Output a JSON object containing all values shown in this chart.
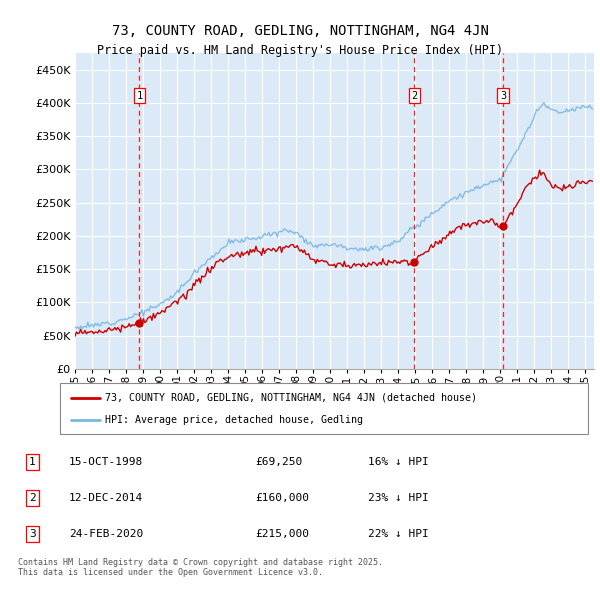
{
  "title": "73, COUNTY ROAD, GEDLING, NOTTINGHAM, NG4 4JN",
  "subtitle": "Price paid vs. HM Land Registry's House Price Index (HPI)",
  "background_color": "#dce9f7",
  "plot_bg_color": "#dce9f7",
  "hpi_color": "#7ab8e0",
  "price_color": "#cc0000",
  "ylim": [
    0,
    475000
  ],
  "yticks": [
    0,
    50000,
    100000,
    150000,
    200000,
    250000,
    300000,
    350000,
    400000,
    450000
  ],
  "xlim_start": 1995.0,
  "xlim_end": 2025.5,
  "transactions": [
    {
      "num": 1,
      "date_dec": 1998.79,
      "price": 69250,
      "label": "1"
    },
    {
      "num": 2,
      "date_dec": 2014.95,
      "price": 160000,
      "label": "2"
    },
    {
      "num": 3,
      "date_dec": 2020.15,
      "price": 215000,
      "label": "3"
    }
  ],
  "transaction_dates": [
    "15-OCT-1998",
    "12-DEC-2014",
    "24-FEB-2020"
  ],
  "transaction_prices": [
    69250,
    160000,
    215000
  ],
  "transaction_hpi": [
    "16% ↓ HPI",
    "23% ↓ HPI",
    "22% ↓ HPI"
  ],
  "legend_label_price": "73, COUNTY ROAD, GEDLING, NOTTINGHAM, NG4 4JN (detached house)",
  "legend_label_hpi": "HPI: Average price, detached house, Gedling",
  "footer": "Contains HM Land Registry data © Crown copyright and database right 2025.\nThis data is licensed under the Open Government Licence v3.0.",
  "xtick_labels": [
    "95",
    "96",
    "97",
    "98",
    "99",
    "00",
    "01",
    "02",
    "03",
    "04",
    "05",
    "06",
    "07",
    "08",
    "09",
    "10",
    "11",
    "12",
    "13",
    "14",
    "15",
    "16",
    "17",
    "18",
    "19",
    "20",
    "21",
    "22",
    "23",
    "24",
    "25"
  ],
  "xtick_values": [
    1995,
    1996,
    1997,
    1998,
    1999,
    2000,
    2001,
    2002,
    2003,
    2004,
    2005,
    2006,
    2007,
    2008,
    2009,
    2010,
    2011,
    2012,
    2013,
    2014,
    2015,
    2016,
    2017,
    2018,
    2019,
    2020,
    2021,
    2022,
    2023,
    2024,
    2025
  ]
}
